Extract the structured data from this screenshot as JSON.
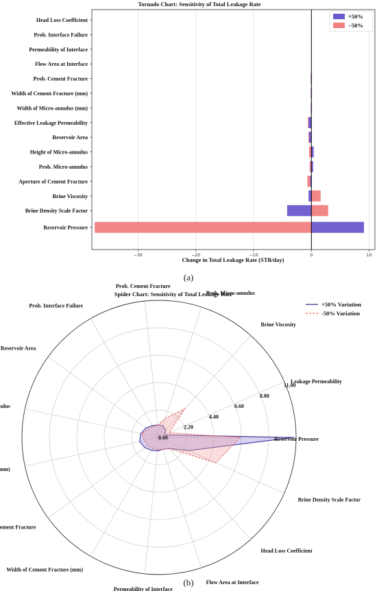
{
  "chart_data": [
    {
      "type": "bar",
      "orientation": "horizontal",
      "title": "Tornado Chart: Sensitivity of Total Leakage Rate",
      "xlabel": "Change in Total Leakage Rate (STB/day)",
      "ylabel": "",
      "xlim": [
        -38,
        11
      ],
      "xticks": [
        -30,
        -20,
        -10,
        0,
        10
      ],
      "grid": true,
      "legend_position": "top-right",
      "categories": [
        "Head Loss Coefficient",
        "Prob. Interface Failure",
        "Permeability of Interface",
        "Flow Area at Interface",
        "Prob. Cement Fracture",
        "Width of Cement Fracture (mm)",
        "Width of Micro-annulus (mm)",
        "Effective Leakage Permeability",
        "Reservoir Area",
        "Height of Micro-annulus",
        "Prob. Micro-annulus",
        "Aperture of Cement Fracture",
        "Brine Viscosity",
        "Brine Density Scale Factor",
        "Reservoir Pressure"
      ],
      "series": [
        {
          "name": "+50%",
          "color": "#6a5acd",
          "values": [
            0,
            0,
            0,
            0,
            -0.1,
            -0.1,
            -0.1,
            -0.5,
            -0.4,
            0.4,
            0.3,
            -0.2,
            -0.5,
            -4.2,
            9.1
          ]
        },
        {
          "name": "−50%",
          "color": "#f08080",
          "values": [
            0,
            0,
            0,
            0,
            0.1,
            0.1,
            0.1,
            -0.6,
            -0.5,
            -0.4,
            -0.3,
            -0.7,
            1.6,
            2.9,
            -37.5
          ]
        }
      ],
      "caption": "(a)"
    },
    {
      "type": "radar",
      "title": "Spider Chart: Sensitivity of Total Leakage Rate",
      "rlim": [
        0,
        11
      ],
      "rticks": [
        "0.00",
        "2.20",
        "4.40",
        "6.60",
        "8.80",
        "11.00"
      ],
      "grid": true,
      "legend_position": "top-right",
      "axes": [
        "Reservoir Pressure",
        "Leakage Permeability",
        "Brine Viscosity",
        "Prob. Micro-annulus",
        "Prob. Cement Fracture",
        "Prob. Interface Failure",
        "Reservoir Area",
        "Height of Micro-annulus",
        "Width of Micro-annulus (mm)",
        "Aperture of Cement Fracture",
        "Width of Cement Fracture (mm)",
        "Permeability of Interface",
        "Flow Area at Interface",
        "Head Loss Coefficient",
        "Brine Density Scale Factor"
      ],
      "series": [
        {
          "name": "+50% Variation",
          "color": "#3b2f8f",
          "fill": "#8a7fe0",
          "dash": false,
          "values": [
            10.8,
            0.5,
            0.8,
            1.0,
            1.0,
            1.1,
            1.3,
            1.5,
            1.6,
            1.4,
            1.2,
            1.1,
            1.0,
            1.2,
            2.6
          ]
        },
        {
          "name": "-50% Variation",
          "color": "#e06060",
          "fill": "#f2a0a0",
          "dash": true,
          "values": [
            6.5,
            0.9,
            3.1,
            1.6,
            1.0,
            1.0,
            1.1,
            1.4,
            1.2,
            1.1,
            1.0,
            1.0,
            1.0,
            1.2,
            5.0
          ]
        }
      ],
      "caption": "(b)"
    }
  ]
}
